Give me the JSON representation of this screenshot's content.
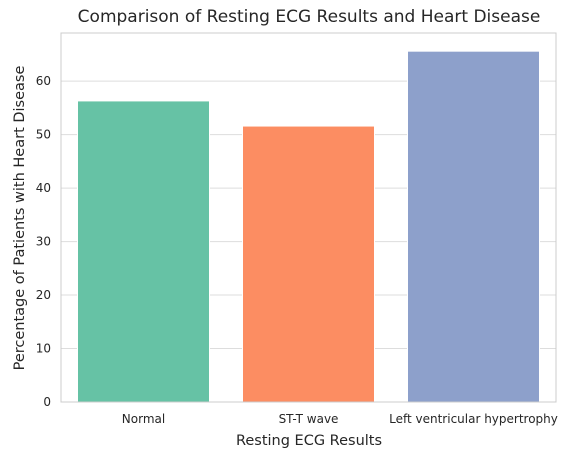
{
  "chart_data": {
    "type": "bar",
    "title": "Comparison of Resting ECG Results and Heart Disease",
    "xlabel": "Resting ECG Results",
    "ylabel": "Percentage of Patients with Heart Disease",
    "categories": [
      "Normal",
      "ST-T wave",
      "Left ventricular hypertrophy"
    ],
    "values": [
      56.3,
      51.6,
      65.6
    ],
    "colors": [
      "#66c2a5",
      "#fc8d62",
      "#8da0cb"
    ],
    "ylim": [
      0,
      69
    ],
    "yticks": [
      0,
      10,
      20,
      30,
      40,
      50,
      60
    ],
    "grid": "horizontal",
    "legend": "none"
  }
}
